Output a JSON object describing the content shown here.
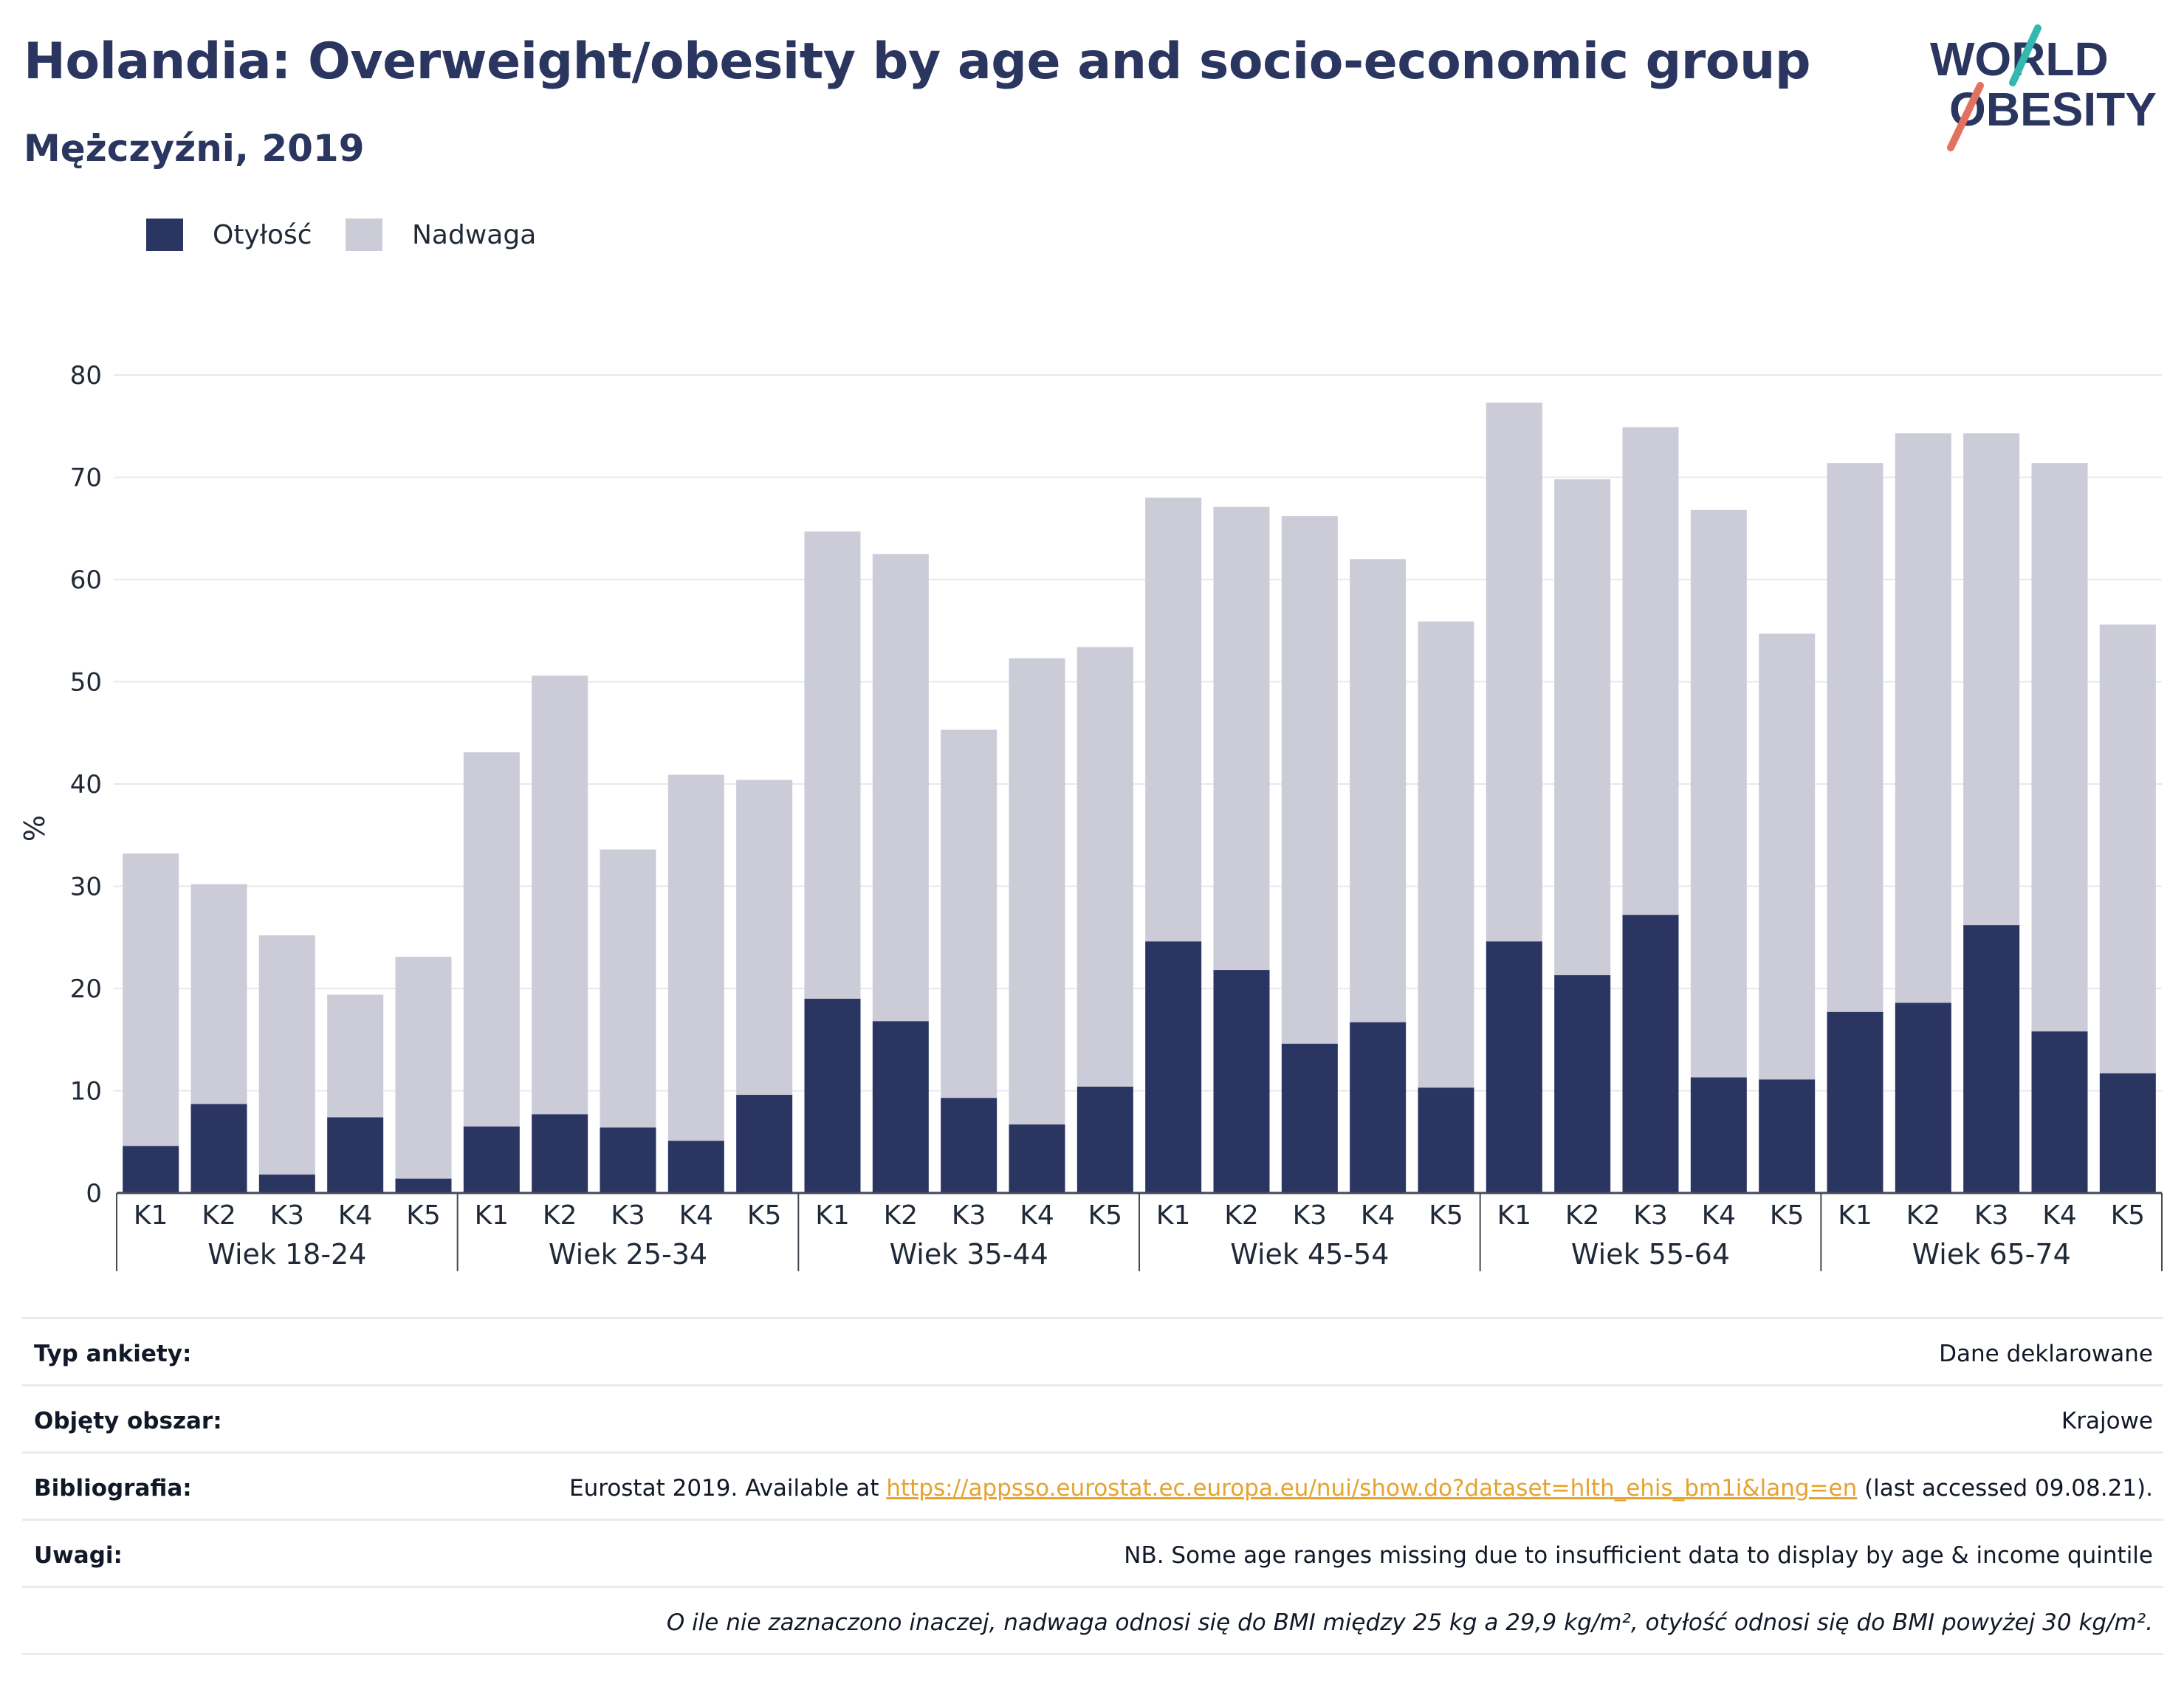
{
  "header": {
    "title": "Holandia: Overweight/obesity by age and socio-economic group",
    "subtitle": "Mężczyźni, 2019"
  },
  "logo": {
    "line1": "WORLD",
    "line2": "OBESITY",
    "icon": "world-obesity-logo"
  },
  "colors": {
    "obesity": "#2a3562",
    "overweight": "#cbccd8",
    "title": "#2a3560",
    "link": "#e6a32e",
    "logo_teal": "#33b8b0",
    "logo_coral": "#e2725f"
  },
  "legend": [
    {
      "label": "Otyłość",
      "color": "#2a3562"
    },
    {
      "label": "Nadwaga",
      "color": "#cbccd8"
    }
  ],
  "chart_data": {
    "type": "bar",
    "stacked": true,
    "ylabel": "%",
    "ylim": [
      0,
      80
    ],
    "yticks": [
      0,
      10,
      20,
      30,
      40,
      50,
      60,
      70,
      80
    ],
    "grid": true,
    "legend_position": "top-left",
    "groups": [
      "Wiek 18-24",
      "Wiek 25-34",
      "Wiek 35-44",
      "Wiek 45-54",
      "Wiek 55-64",
      "Wiek 65-74"
    ],
    "categories": [
      "K1",
      "K2",
      "K3",
      "K4",
      "K5"
    ],
    "series": [
      {
        "name": "Otyłość",
        "values": [
          [
            4.6,
            8.7,
            1.8,
            7.4,
            1.4
          ],
          [
            6.5,
            7.7,
            6.4,
            5.1,
            9.6
          ],
          [
            19.0,
            16.8,
            9.3,
            6.7,
            10.4
          ],
          [
            24.6,
            21.8,
            14.6,
            16.7,
            10.3
          ],
          [
            24.6,
            21.3,
            27.2,
            11.3,
            11.1
          ],
          [
            17.7,
            18.6,
            26.2,
            15.8,
            11.7
          ]
        ]
      },
      {
        "name": "Nadwaga",
        "values": [
          [
            28.6,
            21.5,
            23.4,
            12.0,
            21.7
          ],
          [
            36.6,
            42.9,
            27.2,
            35.8,
            30.8
          ],
          [
            45.7,
            45.7,
            36.0,
            45.6,
            43.0
          ],
          [
            43.4,
            45.3,
            51.6,
            45.3,
            45.6
          ],
          [
            52.7,
            48.5,
            47.7,
            55.5,
            43.6
          ],
          [
            53.7,
            55.7,
            48.1,
            55.6,
            43.9
          ]
        ]
      }
    ]
  },
  "info": {
    "survey_label": "Typ ankiety:",
    "survey_value": "Dane deklarowane",
    "area_label": "Objęty obszar:",
    "area_value": "Krajowe",
    "bib_label": "Bibliografia:",
    "bib_prefix": "Eurostat 2019. Available at ",
    "bib_link": "https://appsso.eurostat.ec.europa.eu/nui/show.do?dataset=hlth_ehis_bm1i&lang=en",
    "bib_suffix": " (last accessed 09.08.21).",
    "notes_label": "Uwagi:",
    "notes_value": "NB. Some age ranges missing due to insufficient data to display by age & income quintile",
    "footnote": "O ile nie zaznaczono inaczej, nadwaga odnosi się do BMI między 25 kg a 29,9 kg/m², otyłość odnosi się do BMI powyżej 30 kg/m²."
  }
}
